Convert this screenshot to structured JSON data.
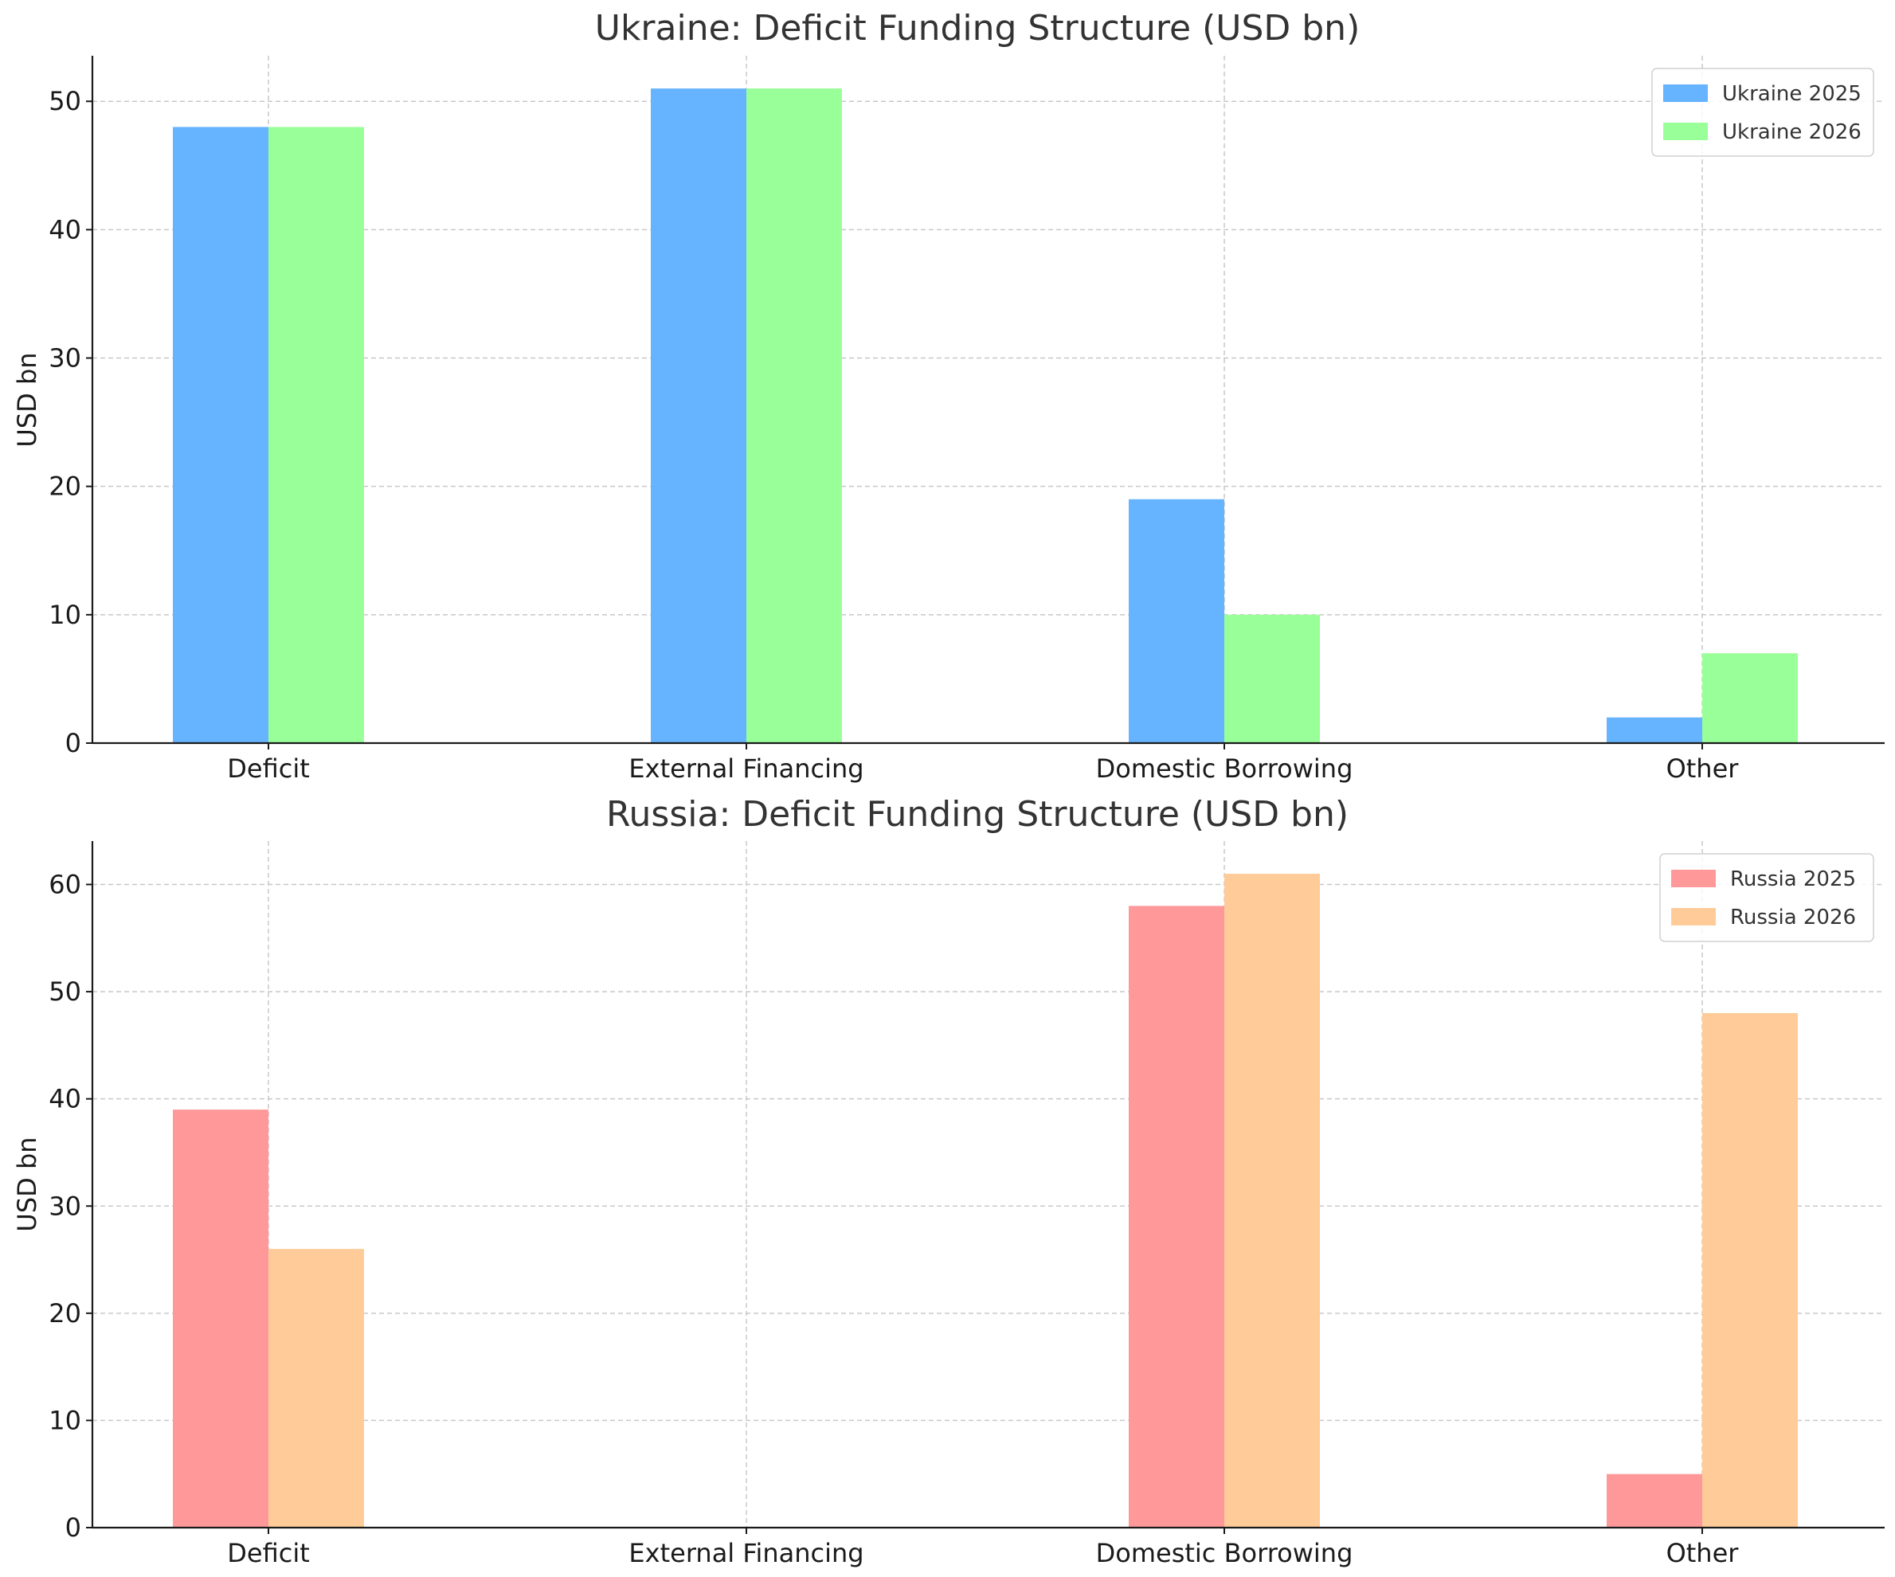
{
  "chart_data": [
    {
      "type": "bar",
      "title": "Ukraine: Deficit Funding Structure (USD bn)",
      "xlabel": "",
      "ylabel": "USD bn",
      "categories": [
        "Deficit",
        "External Financing",
        "Domestic Borrowing",
        "Other"
      ],
      "series": [
        {
          "name": "Ukraine 2025",
          "color": "#66b3ff",
          "values": [
            48,
            51,
            19,
            2
          ]
        },
        {
          "name": "Ukraine 2026",
          "color": "#99ff99",
          "values": [
            48,
            51,
            10,
            7
          ]
        }
      ],
      "ylim": [
        0,
        53.55
      ],
      "yticks": [
        0,
        10,
        20,
        30,
        40,
        50
      ],
      "grid": true,
      "legend": "top-right"
    },
    {
      "type": "bar",
      "title": "Russia: Deficit Funding Structure (USD bn)",
      "xlabel": "",
      "ylabel": "USD bn",
      "categories": [
        "Deficit",
        "External Financing",
        "Domestic Borrowing",
        "Other"
      ],
      "series": [
        {
          "name": "Russia 2025",
          "color": "#ff9999",
          "values": [
            39,
            0,
            58,
            5
          ]
        },
        {
          "name": "Russia 2026",
          "color": "#ffcc99",
          "values": [
            26,
            0,
            61,
            48
          ]
        }
      ],
      "ylim": [
        0,
        64.05
      ],
      "yticks": [
        0,
        10,
        20,
        30,
        40,
        50,
        60
      ],
      "grid": true,
      "legend": "top-right"
    }
  ]
}
